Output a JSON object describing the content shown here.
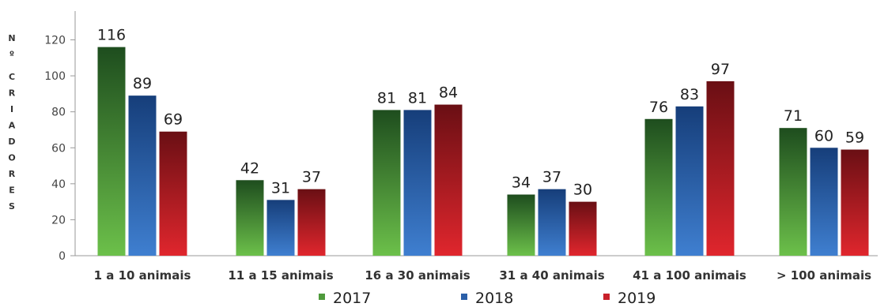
{
  "chart_data": {
    "type": "bar",
    "ylabel": "Nº CRIADORES",
    "xlabel": "",
    "ylim": [
      0,
      130
    ],
    "yticks": [
      0,
      20,
      40,
      60,
      80,
      100,
      120
    ],
    "categories": [
      "1 a 10 animais",
      "11 a 15 animais",
      "16 a 30 animais",
      "31 a 40 animais",
      "41 a 100 animais",
      "> 100 animais"
    ],
    "series": [
      {
        "name": "2017",
        "values": [
          116,
          42,
          81,
          34,
          76,
          71
        ],
        "color": "#4f9a3c"
      },
      {
        "name": "2018",
        "values": [
          89,
          31,
          81,
          37,
          83,
          60
        ],
        "color": "#2b5fa8"
      },
      {
        "name": "2019",
        "values": [
          69,
          37,
          84,
          30,
          97,
          59
        ],
        "color": "#c8202a"
      }
    ],
    "legend_position": "bottom",
    "grid": false
  }
}
